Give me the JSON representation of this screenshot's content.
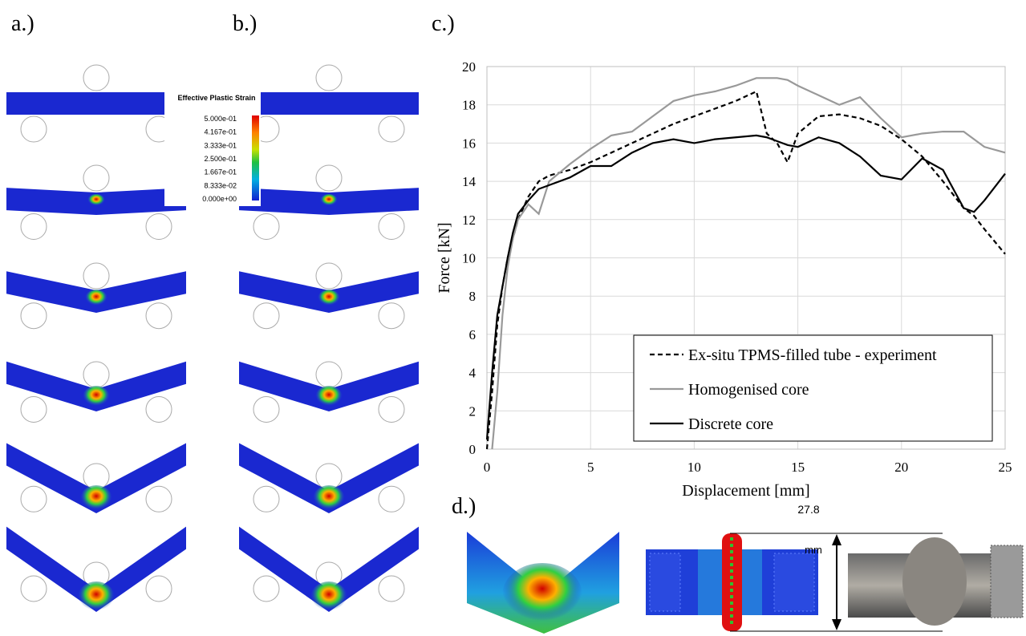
{
  "panel_labels": [
    "a.)",
    "b.)",
    "c.)",
    "d.)"
  ],
  "colorbar": {
    "title": "Effective Plastic Strain",
    "labels": [
      "5.000e-01",
      "4.167e-01",
      "3.333e-01",
      "2.500e-01",
      "1.667e-01",
      "8.333e-02",
      "0.000e+00"
    ]
  },
  "dimension": {
    "value": "27.8",
    "unit": "mm"
  },
  "chart_data": {
    "type": "line",
    "x_label": "Displacement [mm]",
    "y_label": "Force [kN]",
    "x": [
      0,
      0.25,
      0.5,
      0.75,
      1,
      1.25,
      1.5,
      2,
      2.5,
      3,
      4,
      5,
      6,
      7,
      8,
      9,
      10,
      11,
      12,
      13,
      13.5,
      14,
      14.5,
      15,
      16,
      17,
      18,
      19,
      20,
      21,
      22,
      23,
      23.5,
      24,
      25
    ],
    "series": [
      {
        "name": "Ex-situ TPMS-filled tube - experiment",
        "color": "#000000",
        "dash": "dashed",
        "values": [
          0,
          3,
          6.5,
          8.5,
          10,
          11,
          12,
          13.2,
          14,
          14.3,
          14.6,
          15,
          15.5,
          16,
          16.5,
          17,
          17.4,
          17.8,
          18.2,
          18.7,
          16.5,
          16,
          15,
          16.5,
          17.4,
          17.5,
          17.3,
          16.9,
          16.2,
          15.3,
          14,
          12.6,
          12.2,
          11.5,
          10.2
        ]
      },
      {
        "name": "Homogenised core",
        "color": "#999999",
        "dash": "solid",
        "values": [
          null,
          0,
          3,
          7,
          9.5,
          11,
          12,
          12.8,
          12.3,
          14,
          14.9,
          15.7,
          16.4,
          16.6,
          17.4,
          18.2,
          18.5,
          18.7,
          19,
          19.4,
          19.4,
          19.4,
          19.3,
          19,
          18.5,
          18,
          18.4,
          17.3,
          16.3,
          16.5,
          16.6,
          16.6,
          16.2,
          15.8,
          15.5
        ]
      },
      {
        "name": "Discrete core",
        "color": "#000000",
        "dash": "solid",
        "values": [
          0.5,
          4,
          7,
          8.5,
          10,
          11.3,
          12.3,
          13,
          13.6,
          13.8,
          14.2,
          14.8,
          14.8,
          15.5,
          16,
          16.2,
          16,
          16.2,
          16.3,
          16.4,
          16.3,
          16.1,
          15.9,
          15.8,
          16.3,
          16,
          15.3,
          14.3,
          14.1,
          15.2,
          14.6,
          12.6,
          12.4,
          13,
          14.4
        ]
      }
    ],
    "xlim": [
      0,
      25
    ],
    "xticks": [
      0,
      5,
      10,
      15,
      20,
      25
    ],
    "ylim": [
      0,
      20
    ],
    "yticks": [
      0,
      2,
      4,
      6,
      8,
      10,
      12,
      14,
      16,
      18,
      20
    ],
    "grid": true,
    "legend": "lower right"
  }
}
